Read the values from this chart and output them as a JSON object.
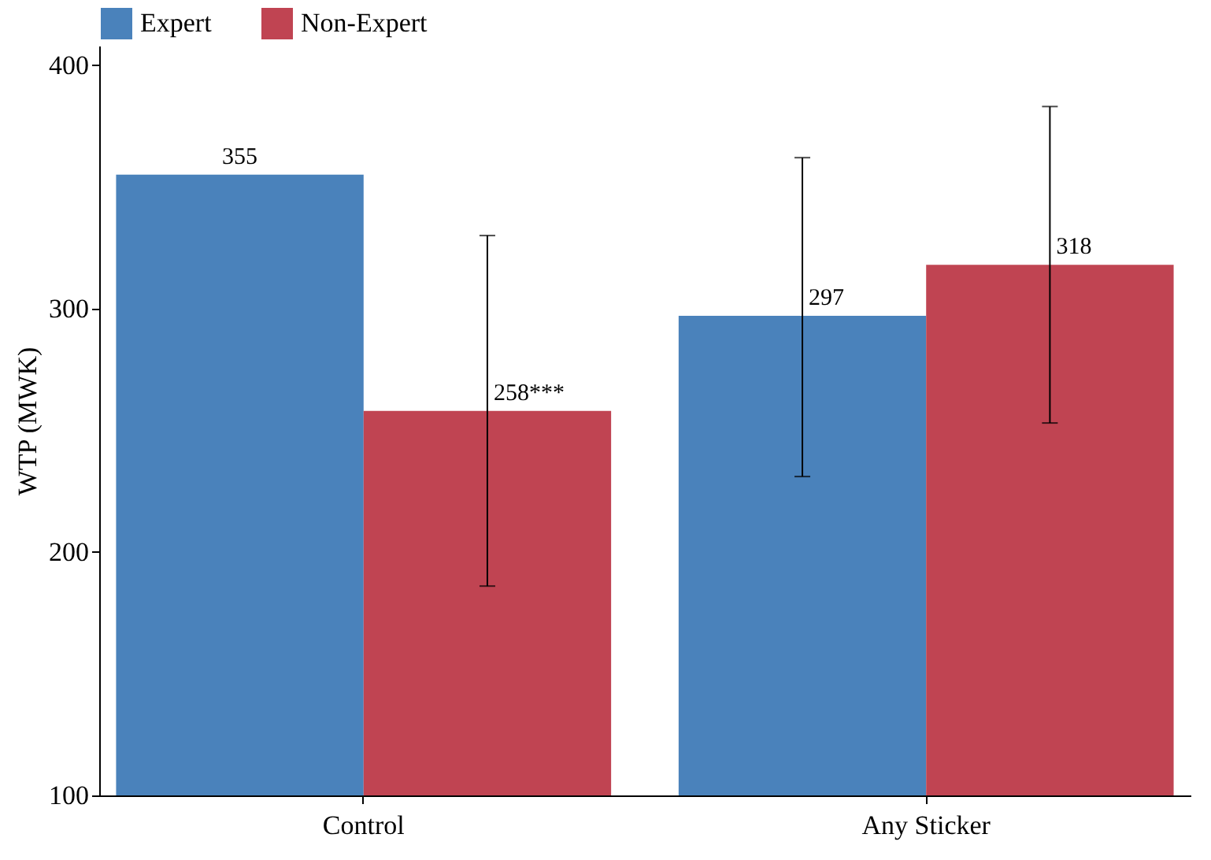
{
  "chart_data": {
    "type": "bar",
    "ylabel": "WTP (MWK)",
    "categories": [
      "Control",
      "Any Sticker"
    ],
    "series": [
      {
        "name": "Expert",
        "color": "#4a82bb",
        "values": [
          355,
          297
        ],
        "errors": [
          null,
          [
            231,
            362
          ]
        ],
        "value_labels": [
          "355",
          "297"
        ]
      },
      {
        "name": "Non-Expert",
        "color": "#c04452",
        "values": [
          258,
          318
        ],
        "errors": [
          [
            186,
            330
          ],
          [
            253,
            383
          ]
        ],
        "value_labels": [
          "258***",
          "318"
        ]
      }
    ],
    "ylim": [
      100,
      408
    ],
    "yticks": [
      100,
      200,
      300,
      400
    ],
    "grid": false,
    "legend": "top left"
  }
}
